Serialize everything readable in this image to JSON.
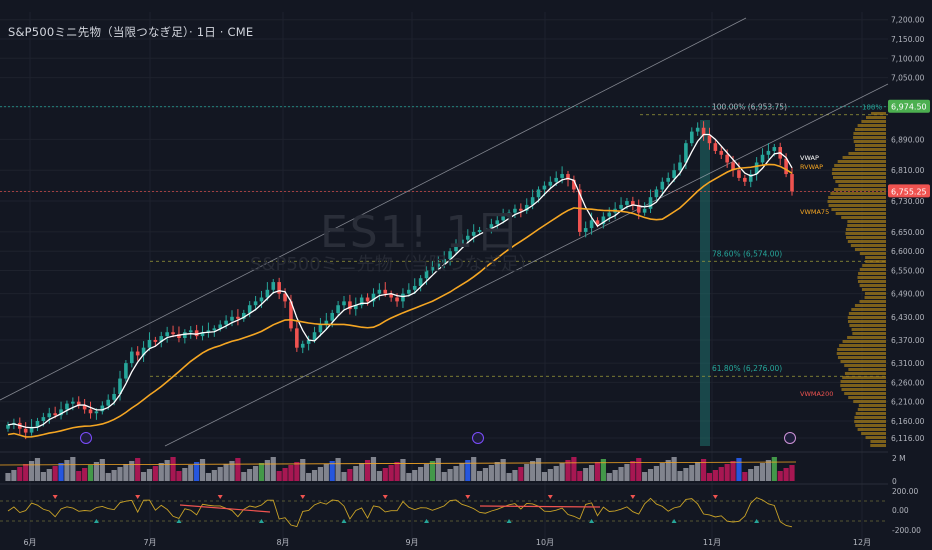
{
  "header": {
    "title": "S&P500ミニ先物（当限つなぎ足）· 1日 · CME"
  },
  "watermark": {
    "symbol": "ES1! 1日",
    "description": "S&P500ミニ先物（当限つなぎ足）"
  },
  "colors": {
    "background": "#131722",
    "bull": "#26a69a",
    "bear": "#ef5350",
    "vwap": "#ffffff",
    "rvwap": "#f5a623",
    "grid": "#1e222d",
    "channel": "#b2b5be",
    "fib_line": "#9a9a3a",
    "profile": "#a07a1a"
  },
  "chart_data": {
    "type": "candlestick",
    "title": "S&P500ミニ先物（当限つなぎ足）· 1日 · CME",
    "x_tick_labels": [
      "6月",
      "7月",
      "8月",
      "9月",
      "10月",
      "11月",
      "12月"
    ],
    "y_tick_labels": [
      "7,200.00",
      "7,150.00",
      "7,100.00",
      "7,050.00",
      "6,974.50",
      "6,890.00",
      "6,810.00",
      "6,755.25",
      "6,730.00",
      "6,650.00",
      "6,600.00",
      "6,550.00",
      "6,490.00",
      "6,430.00",
      "6,370.00",
      "6,310.00",
      "6,260.00",
      "6,210.00",
      "6,160.00",
      "6,116.00"
    ],
    "y_range": [
      6090,
      7220
    ],
    "current_price": "6,755.25",
    "high_marker": "6,974.50",
    "high_marker_pct": "100%",
    "indicators": [
      "VWAP",
      "RVWAP",
      "VWMA75",
      "VWMA200"
    ],
    "fib_levels": [
      {
        "label": "100.00% (6,953.75)",
        "value": 6953.75
      },
      {
        "label": "78.60% (6,574.00)",
        "value": 6574.0
      },
      {
        "label": "61.80% (6,276.00)",
        "value": 6276.0
      }
    ],
    "volume_axis_labels": [
      "2 M",
      "0"
    ],
    "oscillator_axis_labels": [
      "200.00",
      "0.00",
      "-200.00"
    ],
    "closes": [
      6150,
      6155,
      6140,
      6130,
      6145,
      6160,
      6170,
      6180,
      6175,
      6190,
      6205,
      6210,
      6200,
      6190,
      6180,
      6185,
      6200,
      6215,
      6230,
      6270,
      6310,
      6340,
      6330,
      6350,
      6370,
      6365,
      6380,
      6390,
      6385,
      6375,
      6390,
      6395,
      6380,
      6390,
      6395,
      6400,
      6410,
      6420,
      6430,
      6425,
      6440,
      6460,
      6470,
      6480,
      6500,
      6520,
      6490,
      6470,
      6400,
      6350,
      6360,
      6370,
      6390,
      6410,
      6420,
      6440,
      6460,
      6470,
      6450,
      6460,
      6480,
      6470,
      6490,
      6500,
      6490,
      6480,
      6470,
      6490,
      6500,
      6510,
      6530,
      6550,
      6560,
      6570,
      6580,
      6600,
      6620,
      6630,
      6640,
      6650,
      6655,
      6660,
      6670,
      6680,
      6690,
      6700,
      6710,
      6705,
      6720,
      6740,
      6760,
      6770,
      6780,
      6790,
      6800,
      6785,
      6760,
      6650,
      6660,
      6680,
      6670,
      6690,
      6700,
      6710,
      6720,
      6730,
      6720,
      6700,
      6710,
      6740,
      6760,
      6780,
      6790,
      6810,
      6830,
      6880,
      6910,
      6920,
      6900,
      6880,
      6860,
      6850,
      6830,
      6810,
      6790,
      6780,
      6800,
      6830,
      6850,
      6860,
      6870,
      6840,
      6800,
      6755
    ]
  }
}
